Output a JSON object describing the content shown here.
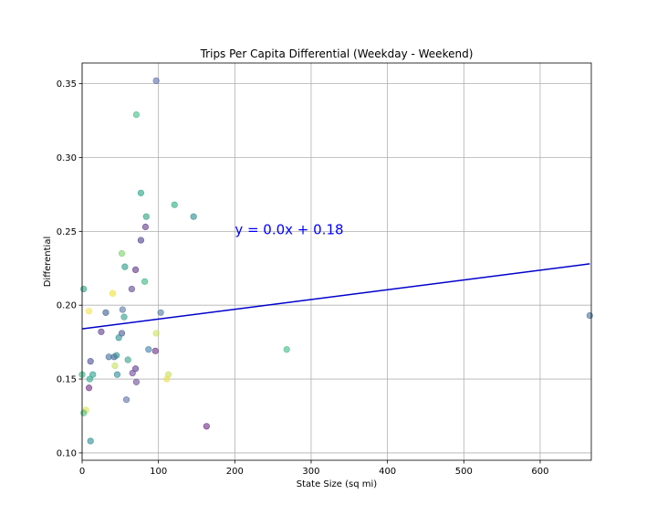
{
  "chart_data": {
    "type": "scatter",
    "title": "Trips Per Capita Differential (Weekday - Weekend)",
    "xlabel": "State Size (sq mi)",
    "ylabel": "Differential",
    "xlim": [
      0,
      667
    ],
    "ylim": [
      0.095,
      0.364
    ],
    "x_ticks": [
      0,
      100,
      200,
      300,
      400,
      500,
      600
    ],
    "y_ticks": [
      0.1,
      0.15,
      0.2,
      0.25,
      0.3,
      0.35
    ],
    "x_tick_labels": [
      "0",
      "100",
      "200",
      "300",
      "400",
      "500",
      "600"
    ],
    "y_tick_labels": [
      "0.10",
      "0.15",
      "0.20",
      "0.25",
      "0.30",
      "0.35"
    ],
    "grid": true,
    "annotation": {
      "text": "y = 0.0x + 0.18",
      "x": 200,
      "y": 0.251,
      "color": "#0000ff"
    },
    "regression_line": {
      "x": [
        0,
        665
      ],
      "y": [
        0.184,
        0.228
      ],
      "color": "#0000cc"
    },
    "points": [
      {
        "x": 97,
        "y": 0.352,
        "color": "#5a6ea8"
      },
      {
        "x": 71,
        "y": 0.329,
        "color": "#3fbc86"
      },
      {
        "x": 77,
        "y": 0.276,
        "color": "#24a484"
      },
      {
        "x": 121,
        "y": 0.268,
        "color": "#27ad81"
      },
      {
        "x": 84,
        "y": 0.26,
        "color": "#2ba07f"
      },
      {
        "x": 146,
        "y": 0.26,
        "color": "#2c8b8d"
      },
      {
        "x": 83,
        "y": 0.253,
        "color": "#5f3b8a"
      },
      {
        "x": 77,
        "y": 0.244,
        "color": "#4a3d8c"
      },
      {
        "x": 52,
        "y": 0.235,
        "color": "#7bd06a"
      },
      {
        "x": 56,
        "y": 0.226,
        "color": "#2a9b88"
      },
      {
        "x": 70,
        "y": 0.224,
        "color": "#5c3383"
      },
      {
        "x": 82,
        "y": 0.216,
        "color": "#38b680"
      },
      {
        "x": 2,
        "y": 0.211,
        "color": "#2fa485"
      },
      {
        "x": 65,
        "y": 0.211,
        "color": "#5c4a91"
      },
      {
        "x": 40,
        "y": 0.208,
        "color": "#f0e136"
      },
      {
        "x": 53,
        "y": 0.197,
        "color": "#5b78a3"
      },
      {
        "x": 9,
        "y": 0.196,
        "color": "#f4e44b"
      },
      {
        "x": 31,
        "y": 0.195,
        "color": "#395d8e"
      },
      {
        "x": 103,
        "y": 0.195,
        "color": "#4f7aa0"
      },
      {
        "x": 55,
        "y": 0.192,
        "color": "#2e9c8e"
      },
      {
        "x": 665,
        "y": 0.193,
        "color": "#4a71a0"
      },
      {
        "x": 97,
        "y": 0.181,
        "color": "#c9e55a"
      },
      {
        "x": 25,
        "y": 0.182,
        "color": "#5a3b8b"
      },
      {
        "x": 52,
        "y": 0.181,
        "color": "#4b5594"
      },
      {
        "x": 48,
        "y": 0.178,
        "color": "#2d8f92"
      },
      {
        "x": 87,
        "y": 0.17,
        "color": "#3d7ea3"
      },
      {
        "x": 96,
        "y": 0.169,
        "color": "#6a2f85"
      },
      {
        "x": 268,
        "y": 0.17,
        "color": "#3dbb86"
      },
      {
        "x": 35,
        "y": 0.165,
        "color": "#3f6d9e"
      },
      {
        "x": 42,
        "y": 0.165,
        "color": "#3d5b94"
      },
      {
        "x": 45,
        "y": 0.166,
        "color": "#2e8c8b"
      },
      {
        "x": 11,
        "y": 0.162,
        "color": "#4b4f93"
      },
      {
        "x": 60,
        "y": 0.163,
        "color": "#38a087"
      },
      {
        "x": 43,
        "y": 0.159,
        "color": "#c7e05c"
      },
      {
        "x": 70,
        "y": 0.157,
        "color": "#5a3a8c"
      },
      {
        "x": 66,
        "y": 0.154,
        "color": "#6b4a94"
      },
      {
        "x": 14,
        "y": 0.153,
        "color": "#2c9f8d"
      },
      {
        "x": 46,
        "y": 0.153,
        "color": "#2f8a92"
      },
      {
        "x": 113,
        "y": 0.153,
        "color": "#c5e15a"
      },
      {
        "x": 10,
        "y": 0.15,
        "color": "#2aa88a"
      },
      {
        "x": 111,
        "y": 0.15,
        "color": "#eae04c"
      },
      {
        "x": 71,
        "y": 0.148,
        "color": "#6a4c96"
      },
      {
        "x": 9,
        "y": 0.144,
        "color": "#6b2d82"
      },
      {
        "x": 58,
        "y": 0.136,
        "color": "#5b6ea6"
      },
      {
        "x": 5,
        "y": 0.129,
        "color": "#d8e34f"
      },
      {
        "x": 2,
        "y": 0.127,
        "color": "#4fbf7a"
      },
      {
        "x": 163,
        "y": 0.118,
        "color": "#6a2a80"
      },
      {
        "x": 11,
        "y": 0.108,
        "color": "#2c8c94"
      },
      {
        "x": 0,
        "y": 0.153,
        "color": "#3cb383"
      }
    ]
  }
}
